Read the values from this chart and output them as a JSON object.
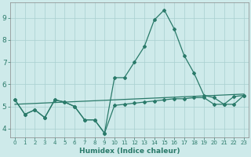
{
  "bg_color": "#ceeaea",
  "grid_color": "#a8d0d0",
  "line_color": "#2a7a6a",
  "xlabel": "Humidex (Indice chaleur)",
  "x_values": [
    0,
    1,
    2,
    3,
    4,
    5,
    6,
    7,
    8,
    9,
    10,
    11,
    12,
    13,
    14,
    15,
    16,
    17,
    18,
    19,
    20,
    21,
    22,
    23
  ],
  "ylim": [
    3.6,
    9.7
  ],
  "xlim": [
    -0.5,
    23.5
  ],
  "yticks": [
    4,
    5,
    6,
    7,
    8,
    9
  ],
  "line_main": [
    5.3,
    4.65,
    4.85,
    4.5,
    5.3,
    5.2,
    5.0,
    4.4,
    4.4,
    3.8,
    6.3,
    6.3,
    7.0,
    7.7,
    8.9,
    9.35,
    8.5,
    7.3,
    6.5,
    5.5,
    5.4,
    5.1,
    5.1,
    5.5
  ],
  "line_low": [
    5.3,
    4.65,
    4.85,
    4.5,
    5.3,
    5.2,
    5.0,
    4.4,
    4.4,
    3.8,
    5.05,
    5.1,
    5.15,
    5.2,
    5.25,
    5.3,
    5.35,
    5.35,
    5.4,
    5.4,
    5.1,
    5.1,
    5.45,
    5.5
  ],
  "line_reg": [
    5.1,
    5.12,
    5.14,
    5.16,
    5.18,
    5.2,
    5.22,
    5.24,
    5.26,
    5.28,
    5.3,
    5.32,
    5.34,
    5.36,
    5.38,
    5.4,
    5.42,
    5.44,
    5.46,
    5.48,
    5.5,
    5.52,
    5.54,
    5.56
  ]
}
